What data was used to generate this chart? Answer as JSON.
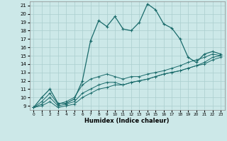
{
  "xlabel": "Humidex (Indice chaleur)",
  "ylabel": "",
  "xlim": [
    -0.5,
    23.5
  ],
  "ylim": [
    8.5,
    21.5
  ],
  "xticks": [
    0,
    1,
    2,
    3,
    4,
    5,
    6,
    7,
    8,
    9,
    10,
    11,
    12,
    13,
    14,
    15,
    16,
    17,
    18,
    19,
    20,
    21,
    22,
    23
  ],
  "yticks": [
    9,
    10,
    11,
    12,
    13,
    14,
    15,
    16,
    17,
    18,
    19,
    20,
    21
  ],
  "bg_color": "#cce8e8",
  "line_color": "#1a6b6b",
  "grid_color": "#aacece",
  "series": [
    {
      "x": [
        0,
        1,
        2,
        3,
        4,
        5,
        6,
        7,
        8,
        9,
        10,
        11,
        12,
        13,
        14,
        15,
        16,
        17,
        18,
        19,
        20,
        21,
        22,
        23
      ],
      "y": [
        8.8,
        10.0,
        11.0,
        9.3,
        9.3,
        9.8,
        12.0,
        16.8,
        19.2,
        18.5,
        19.7,
        18.2,
        18.0,
        19.0,
        21.2,
        20.5,
        18.8,
        18.3,
        17.0,
        14.8,
        14.2,
        15.2,
        15.5,
        15.2
      ]
    },
    {
      "x": [
        0,
        1,
        2,
        3,
        4,
        5,
        6,
        7,
        8,
        9,
        10,
        11,
        12,
        13,
        14,
        15,
        16,
        17,
        18,
        19,
        20,
        21,
        22,
        23
      ],
      "y": [
        8.8,
        9.5,
        10.5,
        9.2,
        9.5,
        10.0,
        11.5,
        12.2,
        12.5,
        12.8,
        12.5,
        12.2,
        12.5,
        12.5,
        12.8,
        13.0,
        13.2,
        13.5,
        13.8,
        14.2,
        14.5,
        14.8,
        15.2,
        15.0
      ]
    },
    {
      "x": [
        0,
        1,
        2,
        3,
        4,
        5,
        6,
        7,
        8,
        9,
        10,
        11,
        12,
        13,
        14,
        15,
        16,
        17,
        18,
        19,
        20,
        21,
        22,
        23
      ],
      "y": [
        8.8,
        9.2,
        10.0,
        9.0,
        9.2,
        9.5,
        10.5,
        11.0,
        11.5,
        11.8,
        11.8,
        11.5,
        11.8,
        12.0,
        12.2,
        12.5,
        12.8,
        13.0,
        13.2,
        13.5,
        13.8,
        14.2,
        14.8,
        15.0
      ]
    },
    {
      "x": [
        0,
        1,
        2,
        3,
        4,
        5,
        6,
        7,
        8,
        9,
        10,
        11,
        12,
        13,
        14,
        15,
        16,
        17,
        18,
        19,
        20,
        21,
        22,
        23
      ],
      "y": [
        8.8,
        9.0,
        9.5,
        8.8,
        9.0,
        9.2,
        10.0,
        10.5,
        11.0,
        11.2,
        11.5,
        11.5,
        11.8,
        12.0,
        12.2,
        12.5,
        12.8,
        13.0,
        13.2,
        13.5,
        13.8,
        14.0,
        14.5,
        14.8
      ]
    }
  ]
}
